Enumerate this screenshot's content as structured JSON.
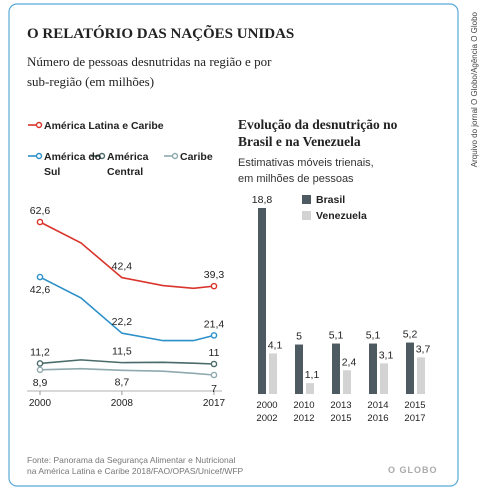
{
  "header": {
    "title": "O RELATÓRIO DAS NAÇÕES UNIDAS",
    "subtitle": "Número de pessoas desnutridas na região e por sub-região (em milhões)"
  },
  "chart_data": [
    {
      "type": "line",
      "x": [
        2000,
        2004,
        2008,
        2012,
        2015,
        2017
      ],
      "xlim": [
        2000,
        2017
      ],
      "xticks": [
        2000,
        2008,
        2017
      ],
      "series": [
        {
          "name": "América Latina e Caribe",
          "color": "#d9342b",
          "values": [
            62.6,
            55,
            42.4,
            39.5,
            38.5,
            39.3
          ],
          "value_labels": [
            "62,6",
            null,
            "42,4",
            null,
            null,
            "39,3"
          ]
        },
        {
          "name": "América do Sul",
          "color": "#2b8fc9",
          "values": [
            42.6,
            35,
            22.2,
            19.5,
            19.5,
            21.4
          ],
          "value_labels": [
            "42,6",
            null,
            "22,2",
            null,
            null,
            "21,4"
          ]
        },
        {
          "name": "América Central",
          "color": "#4a6a6a",
          "values": [
            11.2,
            12.5,
            11.5,
            11.6,
            11.3,
            11
          ],
          "value_labels": [
            "11,2",
            null,
            "11,5",
            null,
            null,
            "11"
          ]
        },
        {
          "name": "Caribe",
          "color": "#8fa9ae",
          "values": [
            8.9,
            9.3,
            8.7,
            8.4,
            7.6,
            7
          ],
          "value_labels": [
            "8,9",
            null,
            "8,7",
            null,
            null,
            "7"
          ]
        }
      ]
    },
    {
      "type": "bar",
      "title": "Evolução da desnutrição no Brasil e na Venezuela",
      "subtitle": "Estimativas móveis trienais, em milhões de pessoas",
      "categories": [
        "2000 2002",
        "2010 2012",
        "2013 2015",
        "2014 2016",
        "2015 2017"
      ],
      "series": [
        {
          "name": "Brasil",
          "color": "#4d5a62",
          "values": [
            18.8,
            5,
            5.1,
            5.1,
            5.2
          ],
          "value_labels": [
            "18,8",
            "5",
            "5,1",
            "5,1",
            "5,2"
          ]
        },
        {
          "name": "Venezuela",
          "color": "#d3d3d3",
          "values": [
            4.1,
            1.1,
            2.4,
            3.1,
            3.7
          ],
          "value_labels": [
            "4,1",
            "1,1",
            "2,4",
            "3,1",
            "3,7"
          ]
        }
      ]
    }
  ],
  "footer": {
    "source": "Fonte: Panorama da Segurança Alimentar e Nutricional\nna América Latina e Caribe 2018/FAO/OPAS/Unicef/WFP",
    "logo": "O GLOBO"
  },
  "credit": "Arquivo do jornal O Globo/Agência O Globo"
}
